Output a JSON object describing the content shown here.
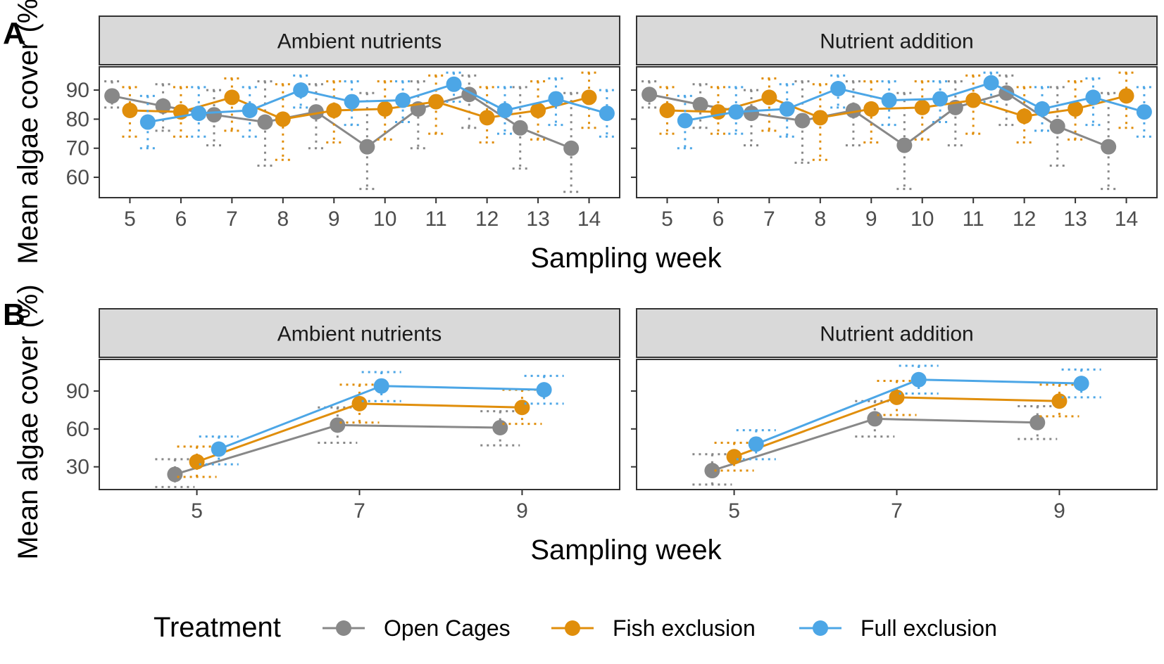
{
  "chart_data": [
    {
      "panel_label": "A",
      "type": "line",
      "xlabel": "Sampling week",
      "ylabel": "Mean algae cover (%)",
      "ylim": [
        53,
        98
      ],
      "yticks": [
        60,
        70,
        80,
        90
      ],
      "x_discrete": true,
      "categories": [
        5,
        6,
        7,
        8,
        9,
        10,
        11,
        12,
        13,
        14
      ],
      "dodge": 0.35,
      "facets": [
        {
          "strip": "Ambient nutrients",
          "series": [
            {
              "name": "Open Cages",
              "color": "#888888",
              "values": [
                88,
                84.5,
                81.5,
                79,
                82.5,
                70.5,
                83.5,
                88.5,
                77,
                70
              ],
              "err_low": [
                84,
                76,
                71,
                64,
                70,
                56,
                70,
                77,
                63,
                55
              ],
              "err_high": [
                93,
                92,
                90,
                93,
                92,
                89,
                93,
                95,
                91,
                89
              ]
            },
            {
              "name": "Fish exclusion",
              "color": "#E08E0B",
              "values": [
                83,
                82.5,
                87.5,
                80,
                83,
                83.5,
                86,
                80.5,
                83,
                87.5
              ],
              "err_low": [
                74,
                74,
                76,
                66,
                72,
                73,
                75,
                72,
                73,
                77
              ],
              "err_high": [
                91,
                91,
                94,
                92,
                93,
                93,
                95,
                91,
                93,
                96
              ]
            },
            {
              "name": "Full exclusion",
              "color": "#4CA6E6",
              "values": [
                79,
                82,
                83,
                90,
                86,
                86.5,
                92,
                83,
                87,
                82
              ],
              "err_low": [
                70,
                74,
                74,
                84,
                78,
                79,
                86,
                75,
                78,
                74
              ],
              "err_high": [
                88,
                91,
                91,
                95,
                93,
                93,
                96,
                91,
                94,
                90
              ]
            }
          ]
        },
        {
          "strip": "Nutrient addition",
          "series": [
            {
              "name": "Open Cages",
              "color": "#888888",
              "values": [
                88.5,
                85,
                82,
                79.5,
                83,
                71,
                84,
                89,
                77.5,
                70.5
              ],
              "err_low": [
                84,
                77,
                71,
                65,
                71,
                56,
                71,
                78,
                64,
                56
              ],
              "err_high": [
                93,
                92,
                90,
                93,
                93,
                89,
                93,
                95,
                91,
                89
              ]
            },
            {
              "name": "Fish exclusion",
              "color": "#E08E0B",
              "values": [
                83,
                82.5,
                87.5,
                80.5,
                83.5,
                84,
                86.5,
                81,
                83.5,
                88
              ],
              "err_low": [
                75,
                75,
                76,
                66,
                72,
                73,
                75,
                72,
                73,
                77
              ],
              "err_high": [
                91,
                91,
                94,
                92,
                93,
                93,
                95,
                91,
                93,
                96
              ]
            },
            {
              "name": "Full exclusion",
              "color": "#4CA6E6",
              "values": [
                79.5,
                82.5,
                83.5,
                90.5,
                86.5,
                87,
                92.5,
                83.5,
                87.5,
                82.5
              ],
              "err_low": [
                70,
                75,
                74,
                84,
                78,
                79,
                86,
                76,
                78,
                74
              ],
              "err_high": [
                88,
                91,
                92,
                95,
                93,
                93,
                96,
                91,
                94,
                91
              ]
            }
          ]
        }
      ]
    },
    {
      "panel_label": "B",
      "type": "line",
      "xlabel": "Sampling week",
      "ylabel": "Mean algae cover (%)",
      "ylim": [
        12,
        115
      ],
      "yticks": [
        30,
        60,
        90
      ],
      "x_discrete": false,
      "xlim": [
        3.8,
        10.2
      ],
      "xticks": [
        5,
        7,
        9
      ],
      "categories": [
        5,
        7,
        9
      ],
      "dodge": 0.27,
      "facets": [
        {
          "strip": "Ambient nutrients",
          "series": [
            {
              "name": "Open Cages",
              "color": "#888888",
              "values": [
                24,
                63,
                61
              ],
              "err_low": [
                14,
                49,
                47
              ],
              "err_high": [
                36,
                77,
                74
              ]
            },
            {
              "name": "Fish exclusion",
              "color": "#E08E0B",
              "values": [
                34,
                80,
                77
              ],
              "err_low": [
                22,
                65,
                64
              ],
              "err_high": [
                46,
                95,
                91
              ]
            },
            {
              "name": "Full exclusion",
              "color": "#4CA6E6",
              "values": [
                44,
                94,
                91
              ],
              "err_low": [
                32,
                82,
                80
              ],
              "err_high": [
                54,
                105,
                102
              ]
            }
          ]
        },
        {
          "strip": "Nutrient addition",
          "series": [
            {
              "name": "Open Cages",
              "color": "#888888",
              "values": [
                27,
                68,
                65
              ],
              "err_low": [
                16,
                54,
                52
              ],
              "err_high": [
                40,
                82,
                78
              ]
            },
            {
              "name": "Fish exclusion",
              "color": "#E08E0B",
              "values": [
                38,
                85,
                82
              ],
              "err_low": [
                27,
                71,
                70
              ],
              "err_high": [
                49,
                98,
                95
              ]
            },
            {
              "name": "Full exclusion",
              "color": "#4CA6E6",
              "values": [
                48,
                99,
                96
              ],
              "err_low": [
                36,
                88,
                85
              ],
              "err_high": [
                59,
                110,
                107
              ]
            }
          ]
        }
      ]
    }
  ],
  "legend": {
    "title": "Treatment",
    "position": "bottom",
    "items": [
      {
        "label": "Open Cages",
        "color": "#888888"
      },
      {
        "label": "Fish exclusion",
        "color": "#E08E0B"
      },
      {
        "label": "Full exclusion",
        "color": "#4CA6E6"
      }
    ]
  },
  "style": {
    "strip_fill": "#D9D9D9",
    "panel_border": "#333333",
    "axis_text": "#4D4D4D"
  }
}
